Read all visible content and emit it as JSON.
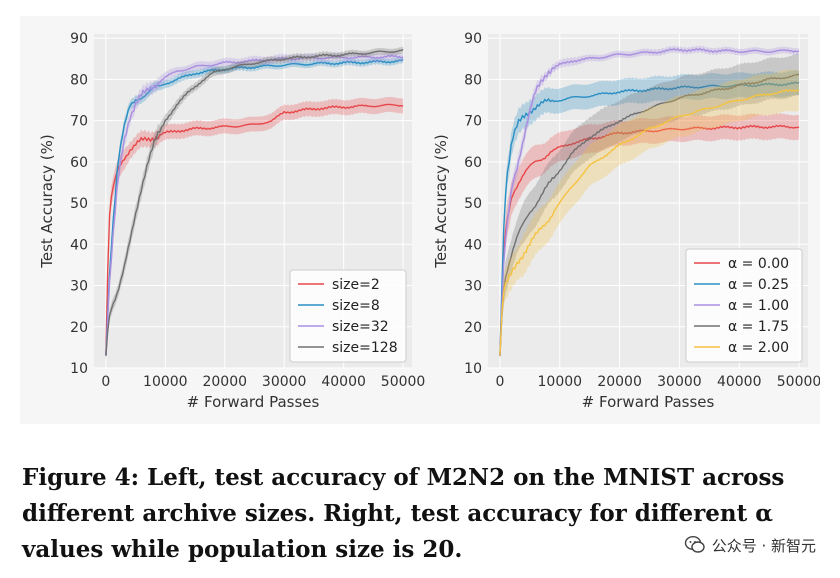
{
  "caption": {
    "line1": "Figure 4: Left, test accuracy of M2N2 on the MNIST across",
    "line2": "different archive sizes. Right, test accuracy for different α",
    "line3": "values while population size is 20."
  },
  "watermark": {
    "text": "公众号 · 新智元",
    "icon": "wechat-icon"
  },
  "chart_data": [
    {
      "type": "line",
      "panel": "left",
      "xlabel": "# Forward Passes",
      "ylabel": "Test Accuracy (%)",
      "xlim": [
        -2000,
        51500
      ],
      "ylim": [
        10,
        91
      ],
      "xticks": [
        0,
        10000,
        20000,
        30000,
        40000,
        50000
      ],
      "yticks": [
        10,
        20,
        30,
        40,
        50,
        60,
        70,
        80,
        90
      ],
      "grid": true,
      "legend": "bottom-right",
      "series": [
        {
          "name": "size=2",
          "color": "#e8474a",
          "x": [
            0,
            500,
            1000,
            2000,
            3000,
            4000,
            5000,
            6000,
            8000,
            10000,
            12000,
            15000,
            20000,
            25000,
            28000,
            30000,
            33000,
            36000,
            40000,
            45000,
            50000
          ],
          "y": [
            13,
            45,
            52,
            58,
            61,
            63,
            64,
            65,
            66,
            67,
            67.5,
            68,
            68.5,
            69,
            70,
            72,
            72.5,
            73,
            73.3,
            73.6,
            73.8
          ],
          "band": [
            1,
            2.5,
            2.5,
            2.5,
            2.5,
            2,
            2,
            2,
            1.8,
            1.8,
            1.8,
            1.8,
            1.8,
            1.8,
            1.8,
            1.8,
            1.8,
            1.8,
            1.8,
            1.8,
            1.8
          ]
        },
        {
          "name": "size=8",
          "color": "#2a8fc4",
          "x": [
            0,
            500,
            1000,
            2000,
            3000,
            4000,
            5000,
            6000,
            8000,
            10000,
            12000,
            15000,
            20000,
            25000,
            30000,
            35000,
            40000,
            45000,
            50000
          ],
          "y": [
            13,
            30,
            42,
            60,
            68,
            73,
            75,
            76,
            77.5,
            79,
            80,
            81.5,
            82.5,
            83,
            83.5,
            83.8,
            84,
            84.2,
            84.5
          ],
          "band": [
            1,
            2,
            2,
            1.8,
            1.5,
            1.2,
            1.2,
            1.2,
            1.2,
            1,
            1,
            1,
            0.8,
            0.8,
            0.8,
            0.8,
            0.8,
            0.8,
            0.8
          ]
        },
        {
          "name": "size=32",
          "color": "#a98fe0",
          "x": [
            0,
            500,
            1000,
            2000,
            3000,
            4000,
            5000,
            6000,
            8000,
            10000,
            12000,
            15000,
            20000,
            25000,
            30000,
            35000,
            40000,
            45000,
            50000
          ],
          "y": [
            13,
            28,
            38,
            55,
            65,
            71,
            74,
            76,
            78.5,
            80.5,
            82,
            83,
            84,
            84.5,
            85,
            85.2,
            85.3,
            85.4,
            85.5
          ],
          "band": [
            1,
            2.5,
            2.5,
            2,
            2,
            1.5,
            1.5,
            1.5,
            1.5,
            1.2,
            1,
            1,
            1,
            1,
            1,
            1,
            1,
            1,
            1
          ]
        },
        {
          "name": "size=128",
          "color": "#707070",
          "x": [
            0,
            500,
            1000,
            2000,
            3000,
            4000,
            5000,
            6000,
            7000,
            8000,
            9000,
            10000,
            12000,
            14000,
            16000,
            18000,
            20000,
            25000,
            30000,
            35000,
            40000,
            45000,
            50000
          ],
          "y": [
            13,
            22,
            25,
            29,
            34,
            40,
            47,
            54,
            60,
            64,
            67,
            70,
            74,
            77,
            79.5,
            81.5,
            82.5,
            84,
            85,
            85.6,
            86,
            86.5,
            87
          ],
          "band": [
            1,
            1.5,
            1.5,
            1.5,
            1.8,
            2,
            2,
            2,
            2,
            2,
            1.8,
            1.5,
            1.2,
            1,
            1,
            1,
            1,
            0.8,
            0.8,
            0.8,
            0.8,
            0.8,
            0.8
          ]
        }
      ]
    },
    {
      "type": "line",
      "panel": "right",
      "xlabel": "# Forward Passes",
      "ylabel": "Test Accuracy (%)",
      "xlim": [
        -2000,
        51500
      ],
      "ylim": [
        10,
        91
      ],
      "xticks": [
        0,
        10000,
        20000,
        30000,
        40000,
        50000
      ],
      "yticks": [
        10,
        20,
        30,
        40,
        50,
        60,
        70,
        80,
        90
      ],
      "grid": true,
      "legend": "bottom-right",
      "series": [
        {
          "name": "α = 0.00",
          "color": "#e8474a",
          "x": [
            0,
            500,
            1000,
            2000,
            3000,
            4000,
            5000,
            6000,
            8000,
            10000,
            12000,
            15000,
            20000,
            25000,
            30000,
            35000,
            40000,
            45000,
            50000
          ],
          "y": [
            13,
            34,
            44,
            52,
            55,
            57,
            58.5,
            60,
            62,
            63.5,
            64.5,
            65.5,
            67,
            67.5,
            68,
            68.2,
            68.4,
            68.5,
            68.5
          ],
          "band": [
            1,
            3,
            4,
            4,
            4,
            4,
            4,
            4,
            3.5,
            3.5,
            3.5,
            3.5,
            3,
            3,
            3,
            3,
            3,
            3,
            3
          ]
        },
        {
          "name": "α = 0.25",
          "color": "#2a8fc4",
          "x": [
            0,
            500,
            1000,
            2000,
            3000,
            4000,
            5000,
            6000,
            8000,
            10000,
            12000,
            15000,
            20000,
            25000,
            30000,
            35000,
            40000,
            45000,
            50000
          ],
          "y": [
            13,
            40,
            55,
            65,
            69,
            71,
            72.5,
            73.5,
            74.5,
            75,
            75.5,
            76,
            77,
            77.5,
            78,
            78.3,
            78.5,
            78.7,
            79
          ],
          "band": [
            1,
            3,
            3,
            3,
            3,
            3,
            3,
            3,
            3,
            3,
            3,
            3,
            3,
            3,
            3,
            3,
            3,
            3,
            3
          ]
        },
        {
          "name": "α = 1.00",
          "color": "#a98fe0",
          "x": [
            0,
            500,
            1000,
            2000,
            3000,
            4000,
            5000,
            6000,
            7000,
            8000,
            10000,
            12000,
            15000,
            20000,
            25000,
            30000,
            35000,
            40000,
            45000,
            50000
          ],
          "y": [
            13,
            32,
            42,
            54,
            60,
            66,
            72,
            77,
            80,
            82,
            83.5,
            84.5,
            85,
            86,
            86.5,
            87.2,
            87,
            86.8,
            86.8,
            87
          ],
          "band": [
            1,
            2,
            2,
            2,
            2,
            2,
            1.5,
            1.5,
            1.2,
            1,
            1,
            1,
            0.8,
            0.8,
            0.8,
            0.8,
            0.8,
            0.8,
            0.8,
            0.8
          ]
        },
        {
          "name": "α = 1.75",
          "color": "#707070",
          "x": [
            0,
            500,
            1000,
            2000,
            3000,
            4000,
            5000,
            6000,
            8000,
            10000,
            12000,
            15000,
            20000,
            25000,
            30000,
            35000,
            40000,
            45000,
            50000
          ],
          "y": [
            13,
            28,
            33,
            38,
            42,
            45,
            48,
            50,
            54,
            58,
            62,
            66,
            70,
            73,
            75.5,
            77,
            78.5,
            80,
            81
          ],
          "band": [
            1,
            3,
            4,
            4,
            4,
            5,
            5,
            5,
            5,
            5,
            5,
            5,
            5,
            5,
            5,
            5,
            5,
            5,
            5
          ]
        },
        {
          "name": "α = 2.00",
          "color": "#f5c242",
          "x": [
            0,
            500,
            1000,
            2000,
            3000,
            4000,
            5000,
            6000,
            8000,
            10000,
            12000,
            15000,
            20000,
            25000,
            30000,
            35000,
            40000,
            45000,
            50000
          ],
          "y": [
            13,
            28,
            30,
            33,
            36,
            38,
            40,
            42,
            46,
            50,
            54,
            59,
            64,
            68,
            71,
            73,
            75,
            76.5,
            77.5
          ],
          "band": [
            1,
            3,
            4,
            4,
            4,
            5,
            5,
            5,
            5,
            5,
            5,
            5,
            5,
            5,
            5,
            5,
            5,
            5,
            5
          ]
        }
      ]
    }
  ]
}
